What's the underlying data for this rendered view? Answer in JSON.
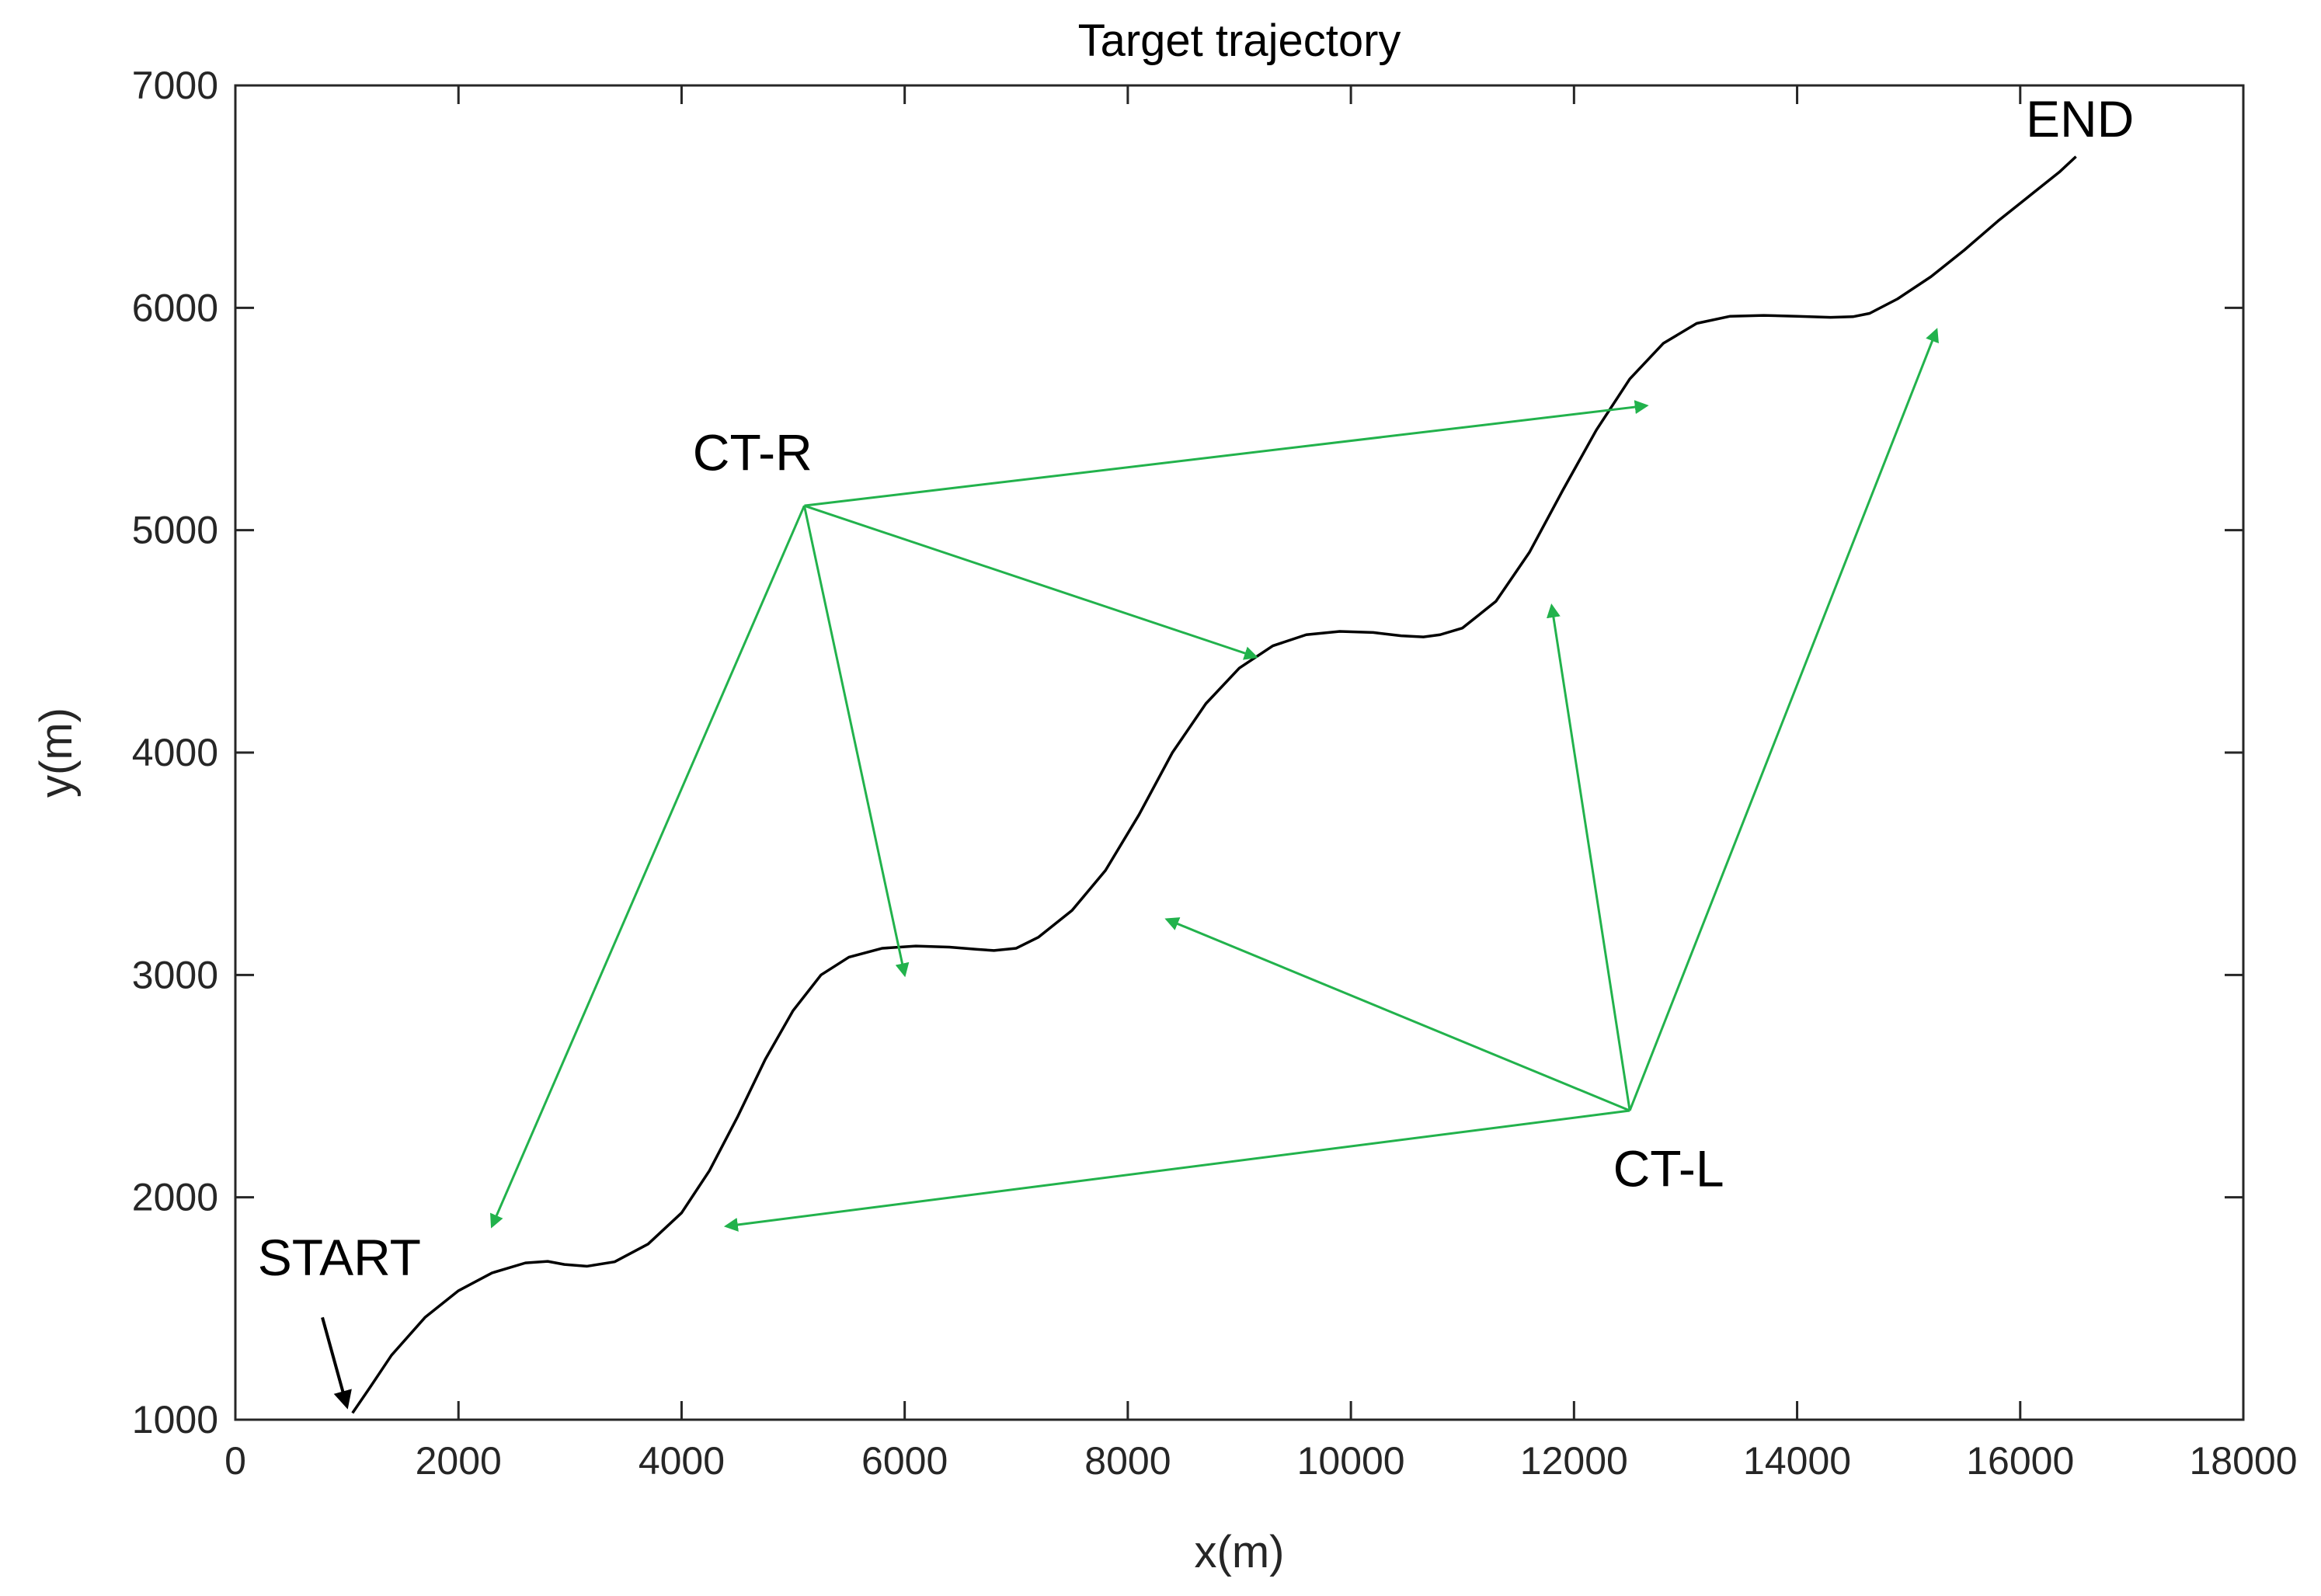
{
  "chart_data": {
    "type": "line",
    "title": "Target trajectory",
    "xlabel": "x(m)",
    "ylabel": "y(m)",
    "xlim": [
      0,
      18000
    ],
    "ylim": [
      1000,
      7000
    ],
    "xticks": [
      0,
      2000,
      4000,
      6000,
      8000,
      10000,
      12000,
      14000,
      16000,
      18000
    ],
    "yticks": [
      1000,
      2000,
      3000,
      4000,
      5000,
      6000,
      7000
    ],
    "grid": false,
    "series": [
      {
        "color": "#000000",
        "x": [
          1050,
          1200,
          1400,
          1700,
          2000,
          2300,
          2600,
          2800,
          2950,
          3150,
          3400,
          3700,
          4000,
          4250,
          4500,
          4750,
          5000,
          5250,
          5500,
          5800,
          6100,
          6400,
          6650,
          6800,
          7000,
          7200,
          7500,
          7800,
          8100,
          8400,
          8700,
          9000,
          9300,
          9600,
          9900,
          10200,
          10450,
          10650,
          10800,
          11000,
          11300,
          11600,
          11900,
          12200,
          12500,
          12800,
          13100,
          13400,
          13700,
          14000,
          14300,
          14500,
          14650,
          14900,
          15200,
          15500,
          15800,
          16100,
          16350,
          16500
        ],
        "y": [
          1030,
          1140,
          1290,
          1460,
          1580,
          1660,
          1705,
          1712,
          1698,
          1690,
          1710,
          1790,
          1930,
          2120,
          2360,
          2620,
          2840,
          3000,
          3080,
          3120,
          3130,
          3125,
          3115,
          3110,
          3120,
          3170,
          3290,
          3470,
          3720,
          4000,
          4220,
          4380,
          4480,
          4530,
          4545,
          4540,
          4525,
          4520,
          4530,
          4560,
          4680,
          4900,
          5180,
          5450,
          5680,
          5840,
          5930,
          5962,
          5966,
          5962,
          5957,
          5960,
          5975,
          6040,
          6140,
          6260,
          6390,
          6510,
          6610,
          6680
        ]
      }
    ],
    "arrows": [
      {
        "color": "#22b24c",
        "from": [
          5100,
          5110
        ],
        "to": [
          2300,
          1870
        ]
      },
      {
        "color": "#22b24c",
        "from": [
          5100,
          5110
        ],
        "to": [
          6000,
          3000
        ]
      },
      {
        "color": "#22b24c",
        "from": [
          5100,
          5110
        ],
        "to": [
          9150,
          4430
        ]
      },
      {
        "color": "#22b24c",
        "from": [
          5100,
          5110
        ],
        "to": [
          12650,
          5560
        ]
      },
      {
        "color": "#22b24c",
        "from": [
          12500,
          2390
        ],
        "to": [
          4400,
          1870
        ]
      },
      {
        "color": "#22b24c",
        "from": [
          12500,
          2390
        ],
        "to": [
          8350,
          3250
        ]
      },
      {
        "color": "#22b24c",
        "from": [
          12500,
          2390
        ],
        "to": [
          11800,
          4660
        ]
      },
      {
        "color": "#22b24c",
        "from": [
          12500,
          2390
        ],
        "to": [
          15250,
          5900
        ]
      },
      {
        "color": "#000000",
        "from": [
          780,
          1460
        ],
        "to": [
          1000,
          1060
        ]
      }
    ],
    "annotations": [
      {
        "text": "START",
        "x": 200,
        "y": 1650
      },
      {
        "text": "CT-R",
        "x": 4100,
        "y": 5270
      },
      {
        "text": "CT-L",
        "x": 12350,
        "y": 2050
      },
      {
        "text": "END",
        "x": 16050,
        "y": 6770
      }
    ]
  }
}
